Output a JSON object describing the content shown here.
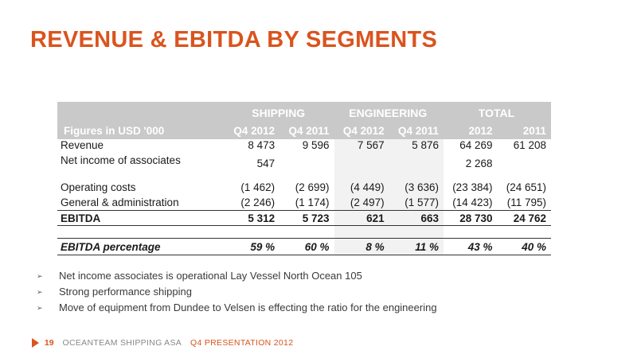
{
  "title": "REVENUE & EBITDA BY SEGMENTS",
  "table": {
    "groups": [
      "SHIPPING",
      "ENGINEERING",
      "TOTAL"
    ],
    "label_header": "Figures in USD '000",
    "columns": [
      "Q4 2012",
      "Q4 2011",
      "Q4 2012",
      "Q4 2011",
      "2012",
      "2011"
    ],
    "rows": {
      "revenue": {
        "label": "Revenue",
        "values": [
          "8 473",
          "9 596",
          "7 567",
          "5 876",
          "64 269",
          "61 208"
        ]
      },
      "associates": {
        "label": "Net income of associates",
        "values": [
          "547",
          "",
          "",
          "",
          "2 268",
          ""
        ]
      },
      "opcost": {
        "label": "Operating costs",
        "values": [
          "(1 462)",
          "(2 699)",
          "(4 449)",
          "(3 636)",
          "(23 384)",
          "(24 651)"
        ]
      },
      "ga": {
        "label": "General & administration",
        "values": [
          "(2 246)",
          "(1 174)",
          "(2 497)",
          "(1 577)",
          "(14 423)",
          "(11 795)"
        ]
      },
      "ebitda": {
        "label": "EBITDA",
        "values": [
          "5 312",
          "5 723",
          "621",
          "663",
          "28 730",
          "24 762"
        ]
      },
      "pct": {
        "label": "EBITDA percentage",
        "values": [
          "59 %",
          "60 %",
          "8 %",
          "11 %",
          "43 %",
          "40 %"
        ]
      }
    }
  },
  "bullets": [
    "Net income associates is operational Lay Vessel North Ocean 105",
    "Strong performance shipping",
    "Move of equipment from Dundee to Velsen is effecting the ratio for the engineering"
  ],
  "bullet_glyph": "➢",
  "footer": {
    "page": "19",
    "company": "OCEANTEAM SHIPPING ASA",
    "presentation": "Q4 PRESENTATION 2012"
  }
}
